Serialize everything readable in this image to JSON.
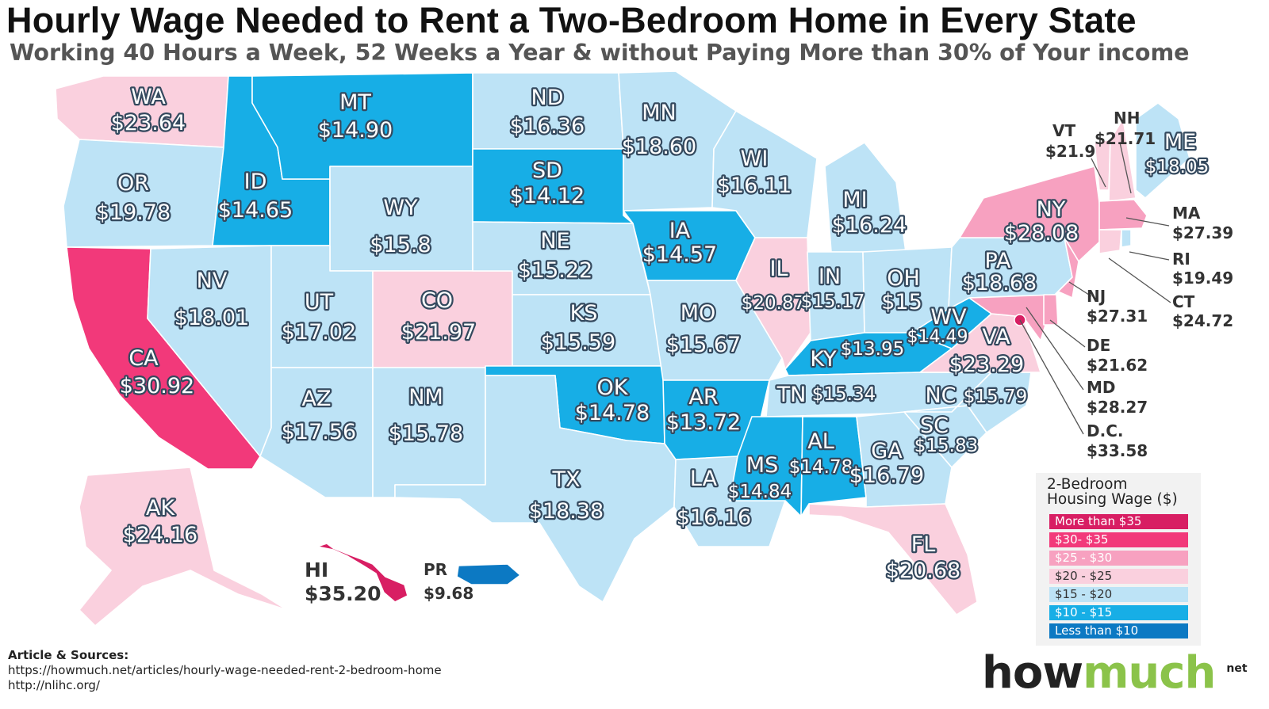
{
  "title": "Hourly Wage Needed to Rent a Two-Bedroom Home in Every State",
  "subtitle": "Working 40 Hours a Week, 52 Weeks a Year & without Paying More than 30% of Your income",
  "colors": {
    "more_than_35": "#d81e63",
    "c30_35": "#f2397a",
    "c25_30": "#f7a1c0",
    "c20_25": "#fad0de",
    "c15_20": "#bde3f6",
    "c10_15": "#17aee6",
    "less_than_10": "#0c79c3"
  },
  "states": [
    {
      "abbr": "WA",
      "wage": "$23.64"
    },
    {
      "abbr": "OR",
      "wage": "$19.78"
    },
    {
      "abbr": "CA",
      "wage": "$30.92"
    },
    {
      "abbr": "ID",
      "wage": "$14.65"
    },
    {
      "abbr": "NV",
      "wage": "$18.01"
    },
    {
      "abbr": "MT",
      "wage": "$14.90"
    },
    {
      "abbr": "WY",
      "wage": "$15.8"
    },
    {
      "abbr": "UT",
      "wage": "$17.02"
    },
    {
      "abbr": "AZ",
      "wage": "$17.56"
    },
    {
      "abbr": "CO",
      "wage": "$21.97"
    },
    {
      "abbr": "NM",
      "wage": "$15.78"
    },
    {
      "abbr": "ND",
      "wage": "$16.36"
    },
    {
      "abbr": "SD",
      "wage": "$14.12"
    },
    {
      "abbr": "NE",
      "wage": "$15.22"
    },
    {
      "abbr": "KS",
      "wage": "$15.59"
    },
    {
      "abbr": "OK",
      "wage": "$14.78"
    },
    {
      "abbr": "TX",
      "wage": "$18.38"
    },
    {
      "abbr": "MN",
      "wage": "$18.60"
    },
    {
      "abbr": "IA",
      "wage": "$14.57"
    },
    {
      "abbr": "MO",
      "wage": "$15.67"
    },
    {
      "abbr": "AR",
      "wage": "$13.72"
    },
    {
      "abbr": "LA",
      "wage": "$16.16"
    },
    {
      "abbr": "WI",
      "wage": "$16.11"
    },
    {
      "abbr": "IL",
      "wage": "$20.87"
    },
    {
      "abbr": "MI",
      "wage": "$16.24"
    },
    {
      "abbr": "IN",
      "wage": "$15.17"
    },
    {
      "abbr": "OH",
      "wage": "$15"
    },
    {
      "abbr": "KY",
      "wage": "$13.95"
    },
    {
      "abbr": "TN",
      "wage": "$15.34"
    },
    {
      "abbr": "MS",
      "wage": "$14.84"
    },
    {
      "abbr": "AL",
      "wage": "$14.78"
    },
    {
      "abbr": "GA",
      "wage": "$16.79"
    },
    {
      "abbr": "FL",
      "wage": "$20.68"
    },
    {
      "abbr": "SC",
      "wage": "$15.83"
    },
    {
      "abbr": "NC",
      "wage": "$15.79"
    },
    {
      "abbr": "VA",
      "wage": "$23.29"
    },
    {
      "abbr": "WV",
      "wage": "$14.49"
    },
    {
      "abbr": "PA",
      "wage": "$18.68"
    },
    {
      "abbr": "NY",
      "wage": "$28.08"
    },
    {
      "abbr": "ME",
      "wage": "$18.05"
    },
    {
      "abbr": "AK",
      "wage": "$24.16"
    },
    {
      "abbr": "HI",
      "wage": "$35.20"
    },
    {
      "abbr": "PR",
      "wage": "$9.68"
    },
    {
      "abbr": "VT",
      "wage": "$21.9"
    },
    {
      "abbr": "NH",
      "wage": "$21.71"
    },
    {
      "abbr": "MA",
      "wage": "$27.39"
    },
    {
      "abbr": "RI",
      "wage": "$19.49"
    },
    {
      "abbr": "CT",
      "wage": "$24.72"
    },
    {
      "abbr": "NJ",
      "wage": "$27.31"
    },
    {
      "abbr": "DE",
      "wage": "$21.62"
    },
    {
      "abbr": "MD",
      "wage": "$28.27"
    },
    {
      "abbr": "D.C.",
      "wage": "$33.58"
    }
  ],
  "legend": {
    "title_line1": "2-Bedroom",
    "title_line2": "Housing Wage ($)",
    "items": [
      "More than $35",
      "$30- $35",
      "$25 - $30",
      "$20 - $25",
      "$15 - $20",
      "$10 - $15",
      "Less than $10"
    ]
  },
  "sources": {
    "title": "Article & Sources:",
    "line1": "https://howmuch.net/articles/hourly-wage-needed-rent-2-bedroom-home",
    "line2": "http://nlihc.org/"
  },
  "brand": {
    "how": "how",
    "much": "much",
    "net": "net"
  }
}
